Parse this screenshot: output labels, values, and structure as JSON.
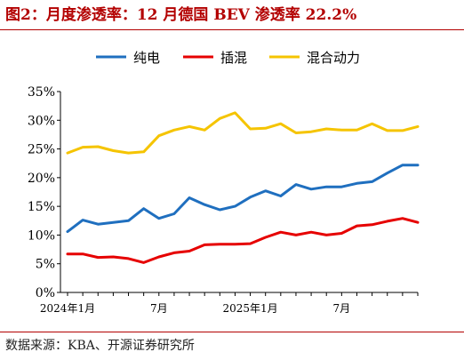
{
  "figure": {
    "title": "图2：月度渗透率：12 月德国 BEV 渗透率 22.2%",
    "source": "数据来源：KBA、开源证券研究所"
  },
  "colors": {
    "accent": "#b30000",
    "series": [
      "#1f6fbf",
      "#e60000",
      "#f5c400"
    ]
  },
  "chart_data": {
    "type": "line",
    "x": [
      "2024年1月",
      "2024年2月",
      "2024年3月",
      "2024年4月",
      "2024年5月",
      "2024年6月",
      "2024年7月",
      "2024年8月",
      "2024年9月",
      "2024年10月",
      "2024年11月",
      "2024年12月",
      "2025年1月",
      "2025年2月",
      "2025年3月",
      "2025年4月",
      "2025年5月",
      "2025年6月",
      "2025年7月",
      "2025年8月",
      "2025年9月",
      "2025年10月",
      "2025年11月",
      "2025年12月"
    ],
    "xtick_labels": [
      "2024年1月",
      "",
      "",
      "",
      "",
      "",
      "7月",
      "",
      "",
      "",
      "",
      "",
      "2025年1月",
      "",
      "",
      "",
      "",
      "",
      "7月",
      "",
      "",
      "",
      "",
      ""
    ],
    "series": [
      {
        "name": "纯电",
        "values": [
          10.6,
          12.6,
          11.9,
          12.2,
          12.5,
          14.6,
          12.9,
          13.7,
          16.5,
          15.3,
          14.4,
          15.0,
          16.6,
          17.7,
          16.8,
          18.8,
          18.0,
          18.4,
          18.4,
          19.0,
          19.3,
          20.8,
          22.2,
          22.2
        ]
      },
      {
        "name": "插混",
        "values": [
          6.7,
          6.7,
          6.1,
          6.2,
          5.9,
          5.2,
          6.2,
          6.9,
          7.2,
          8.3,
          8.4,
          8.4,
          8.5,
          9.6,
          10.5,
          10.0,
          10.5,
          10.0,
          10.3,
          11.6,
          11.8,
          12.4,
          12.9,
          12.2
        ]
      },
      {
        "name": "混合动力",
        "values": [
          24.3,
          25.3,
          25.4,
          24.7,
          24.3,
          24.5,
          27.3,
          28.3,
          28.9,
          28.3,
          30.3,
          31.3,
          28.5,
          28.6,
          29.4,
          27.8,
          28.0,
          28.5,
          28.3,
          28.3,
          29.4,
          28.2,
          28.2,
          28.9
        ]
      }
    ],
    "ylim": [
      0,
      35
    ],
    "yticks": [
      0,
      5,
      10,
      15,
      20,
      25,
      30,
      35
    ],
    "ytick_labels": [
      "0%",
      "5%",
      "10%",
      "15%",
      "20%",
      "25%",
      "30%",
      "35%"
    ],
    "legend_position": "top-center",
    "grid": false
  }
}
